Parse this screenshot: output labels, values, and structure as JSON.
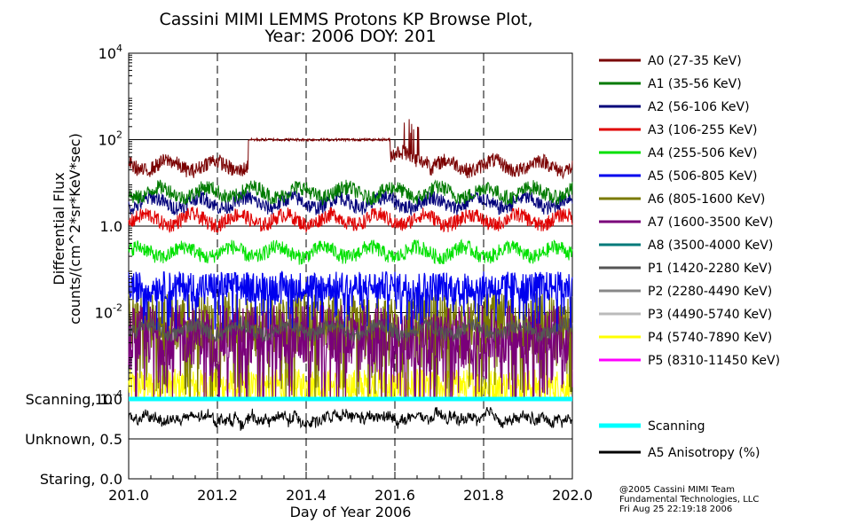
{
  "chart_data": {
    "type": "line",
    "title_line1": "Cassini MIMI LEMMS Protons KP Browse Plot,",
    "title_line2": "Year: 2006 DOY: 201",
    "xlabel": "Day of Year 2006",
    "ylabel_line1": "Differential Flux",
    "ylabel_line2": "counts/(cm^2*sr*KeV*sec)",
    "xlim": [
      201.0,
      202.0
    ],
    "x_ticks": [
      "201.0",
      "201.2",
      "201.4",
      "201.6",
      "201.8",
      "202.0"
    ],
    "flux_panel": {
      "yscale": "log",
      "ylim": [
        0.0001,
        10000
      ],
      "y_ticks": [
        {
          "base": "10",
          "exp": "4"
        },
        {
          "base": "10",
          "exp": "2"
        },
        {
          "base": "1.0",
          "exp": ""
        },
        {
          "base": "10",
          "exp": "-2"
        },
        {
          "base": "10",
          "exp": "-4"
        }
      ]
    },
    "status_panel": {
      "ylim": [
        0.0,
        1.0
      ],
      "y_ticks": [
        "Scanning, 1.0",
        "Unknown, 0.5",
        "Staring, 0.0"
      ]
    },
    "series": [
      {
        "name": "A0 (27-35 KeV)",
        "color": "#7a0000",
        "level": 25,
        "segments": [
          [
            201.27,
            201.59,
            100
          ],
          [
            201.59,
            201.68,
            40
          ]
        ]
      },
      {
        "name": "A1 (35-56 KeV)",
        "color": "#007a00",
        "level": 6
      },
      {
        "name": "A2 (56-106 KeV)",
        "color": "#00007a",
        "level": 3.5
      },
      {
        "name": "A3 (106-255 KeV)",
        "color": "#e00000",
        "level": 1.4
      },
      {
        "name": "A4 (255-506 KeV)",
        "color": "#00e000",
        "level": 0.25
      },
      {
        "name": "A5 (506-805 KeV)",
        "color": "#0000ee",
        "level": 0.04
      },
      {
        "name": "A6 (805-1600 KeV)",
        "color": "#7a7a00",
        "level": 0.006
      },
      {
        "name": "A7 (1600-3500 KeV)",
        "color": "#7a007a",
        "level": 0.003
      },
      {
        "name": "A8 (3500-4000 KeV)",
        "color": "#007a7a",
        "level": null
      },
      {
        "name": "P1 (1420-2280 KeV)",
        "color": "#555555",
        "level": 0.004
      },
      {
        "name": "P2 (2280-4490 KeV)",
        "color": "#888888",
        "level": null
      },
      {
        "name": "P3 (4490-5740 KeV)",
        "color": "#bbbbbb",
        "level": null
      },
      {
        "name": "P4 (5740-7890 KeV)",
        "color": "#ffff00",
        "level": 0.0002
      },
      {
        "name": "P5 (8310-11450 KeV)",
        "color": "#ff00ff",
        "level": null
      }
    ],
    "status_series": [
      {
        "name": "Scanning",
        "color": "#00ffff",
        "value": 1.0
      },
      {
        "name": "A5 Anisotropy (%)",
        "color": "#000000",
        "value": 0.75
      }
    ]
  },
  "credits": {
    "line1": "@2005 Cassini MIMI Team",
    "line2": "Fundamental Technologies, LLC",
    "line3": "Fri Aug 25 22:19:18 2006"
  }
}
